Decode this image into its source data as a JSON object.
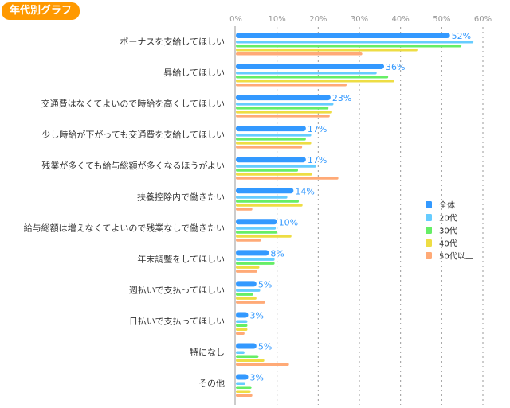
{
  "chart_data": {
    "type": "bar",
    "orientation": "horizontal",
    "title": "年代別グラフ",
    "xlim": [
      0,
      60
    ],
    "x_ticks": [
      "0%",
      "10%",
      "20%",
      "30%",
      "40%",
      "50%",
      "60%"
    ],
    "grid": true,
    "legend_position": "right",
    "categories": [
      "ボーナスを支給してほしい",
      "昇給してほしい",
      "交通費はなくてよいので時給を高くしてほしい",
      "少し時給が下がっても交通費を支給してほしい",
      "残業が多くても給与総額が多くなるほうがよい",
      "扶養控除内で働きたい",
      "給与総額は増えなくてよいので残業なしで働きたい",
      "年末調整をしてほしい",
      "週払いで支払ってほしい",
      "日払いで支払ってほしい",
      "特になし",
      "その他"
    ],
    "series": [
      {
        "name": "全体",
        "color": "#3399ff",
        "values": [
          52,
          36,
          23,
          17,
          17,
          14,
          10,
          8,
          5,
          3,
          5,
          3
        ],
        "labels": [
          "52%",
          "36%",
          "23%",
          "17%",
          "17%",
          "14%",
          "10%",
          "8%",
          "5%",
          "3%",
          "5%",
          "3%"
        ]
      },
      {
        "name": "20代",
        "color": "#66ccff",
        "values": [
          57.7,
          34.2,
          23.7,
          18.3,
          19.5,
          12.5,
          9.7,
          9.4,
          5.9,
          2.8,
          2.1,
          2.3
        ]
      },
      {
        "name": "30代",
        "color": "#66ee66",
        "values": [
          54.8,
          37.0,
          22.5,
          17.0,
          15.1,
          15.3,
          10.0,
          9.4,
          4.2,
          2.8,
          5.5,
          3.8
        ]
      },
      {
        "name": "40代",
        "color": "#eedd44",
        "values": [
          44.1,
          38.5,
          23.4,
          18.3,
          18.5,
          16.2,
          13.5,
          5.7,
          5.0,
          2.8,
          6.9,
          3.6
        ]
      },
      {
        "name": "50代以上",
        "color": "#ffaa77",
        "values": [
          30.7,
          26.9,
          22.8,
          16.1,
          24.9,
          4.0,
          6.1,
          5.2,
          7.1,
          2.1,
          12.9,
          4.0
        ]
      }
    ]
  }
}
